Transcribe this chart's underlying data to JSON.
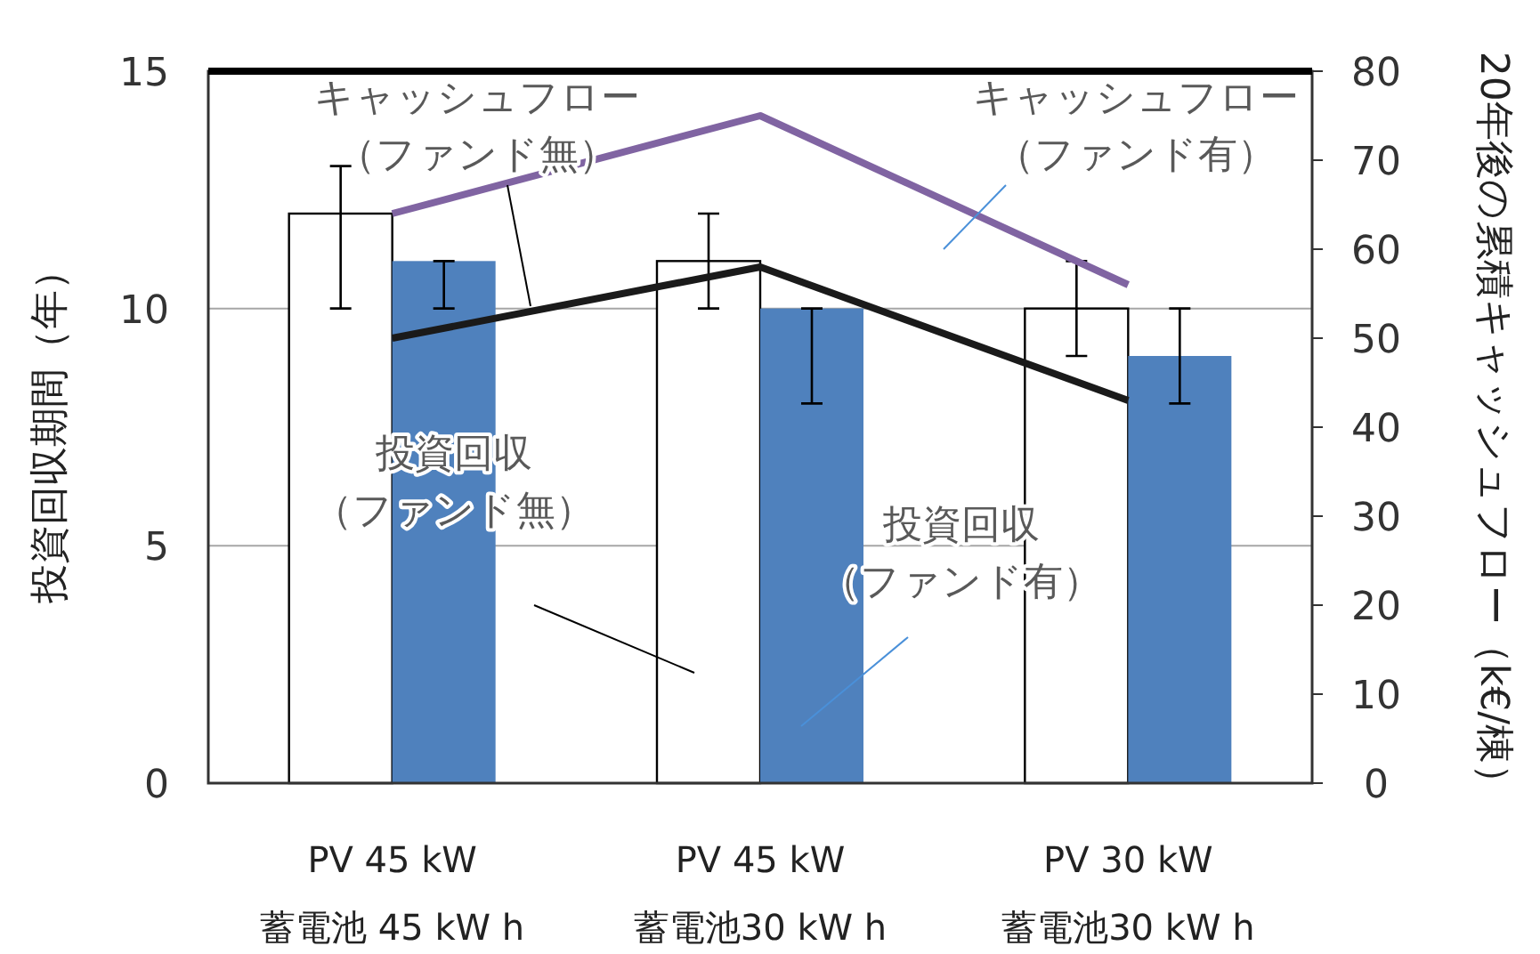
{
  "chart_data": {
    "type": "bar",
    "categories": [
      "PV 45 kW\n蓄電池 45 kW h",
      "PV 45 kW\n蓄電池30 kW h",
      "PV 30 kW\n蓄電池30 kW h"
    ],
    "ylabel": "投資回収期間（年）",
    "y2label": "20年後の累積キャッシュフロー（k€/棟）",
    "ylim": [
      0,
      15
    ],
    "yticks": [
      0,
      5,
      10,
      15
    ],
    "y2lim": [
      0,
      80
    ],
    "y2ticks": [
      0,
      10,
      20,
      30,
      40,
      50,
      60,
      70,
      80
    ],
    "grid": "y",
    "legend": false,
    "series": [
      {
        "name": "投資回収（ファンド無）",
        "color": "#ffffff",
        "values": [
          12,
          11,
          10
        ],
        "errors": [
          [
            10,
            13
          ],
          [
            10,
            12
          ],
          [
            9,
            11
          ]
        ]
      },
      {
        "name": "投資回収（ファンド有）",
        "color": "#4f81bd",
        "values": [
          11,
          10,
          9
        ],
        "errors": [
          [
            10,
            11
          ],
          [
            8,
            10
          ],
          [
            8,
            10
          ]
        ]
      },
      {
        "name": "キャッシュフロー（ファンド無）",
        "type": "line",
        "axis": "y2",
        "color": "#1a1a1a",
        "values": [
          50,
          58,
          43
        ]
      },
      {
        "name": "キャッシュフロー（ファンド有）",
        "type": "line",
        "axis": "y2",
        "color": "#8064a2",
        "values": [
          64,
          75,
          56
        ]
      }
    ]
  }
}
